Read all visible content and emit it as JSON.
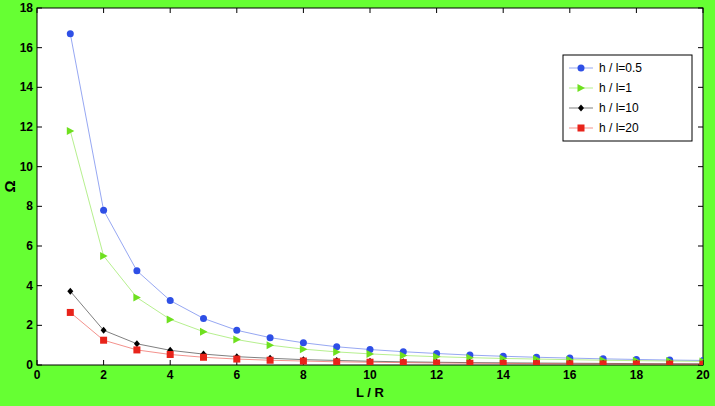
{
  "chart_data": {
    "type": "line",
    "x_label": "L / R",
    "y_label": "Ω",
    "x": [
      1,
      2,
      3,
      4,
      5,
      6,
      7,
      8,
      9,
      10,
      11,
      12,
      13,
      14,
      15,
      16,
      17,
      18,
      19,
      20
    ],
    "xlim": [
      0,
      20
    ],
    "xticks": [
      0,
      2,
      4,
      6,
      8,
      10,
      12,
      14,
      16,
      18,
      20
    ],
    "ylim": [
      0,
      18
    ],
    "yticks": [
      0,
      2,
      4,
      6,
      8,
      10,
      12,
      14,
      16,
      18
    ],
    "grid": false,
    "legend": "upper-right",
    "series": [
      {
        "name": "h / l=0.5",
        "color": "#2e4fe6",
        "marker": "circle",
        "values": [
          16.7,
          7.8,
          4.75,
          3.25,
          2.35,
          1.75,
          1.38,
          1.12,
          0.92,
          0.78,
          0.67,
          0.58,
          0.5,
          0.44,
          0.39,
          0.35,
          0.31,
          0.28,
          0.25,
          0.23
        ]
      },
      {
        "name": "h / l=1",
        "color": "#6ee01e",
        "marker": "triangle-right",
        "values": [
          11.8,
          5.5,
          3.4,
          2.3,
          1.68,
          1.28,
          1.0,
          0.8,
          0.66,
          0.56,
          0.48,
          0.42,
          0.37,
          0.33,
          0.3,
          0.27,
          0.24,
          0.22,
          0.2,
          0.18
        ]
      },
      {
        "name": "h / l=10",
        "color": "#000000",
        "marker": "diamond",
        "values": [
          3.72,
          1.75,
          1.07,
          0.74,
          0.55,
          0.42,
          0.34,
          0.27,
          0.23,
          0.19,
          0.16,
          0.14,
          0.12,
          0.11,
          0.1,
          0.09,
          0.08,
          0.07,
          0.065,
          0.06
        ]
      },
      {
        "name": "h / l=20",
        "color": "#e8231a",
        "marker": "square",
        "values": [
          2.65,
          1.25,
          0.76,
          0.53,
          0.39,
          0.3,
          0.24,
          0.2,
          0.16,
          0.14,
          0.12,
          0.1,
          0.09,
          0.08,
          0.07,
          0.06,
          0.055,
          0.05,
          0.045,
          0.04
        ]
      }
    ]
  }
}
